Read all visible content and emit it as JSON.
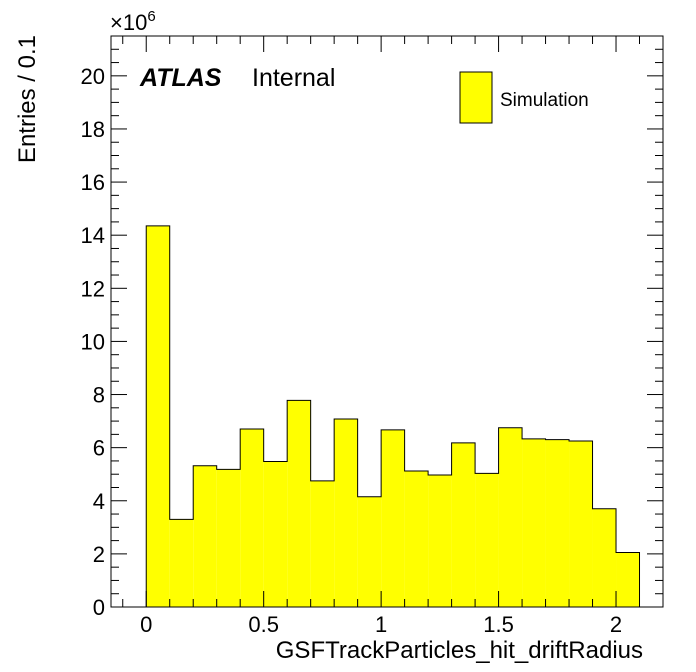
{
  "chart_data": {
    "type": "bar",
    "histogram": true,
    "x_bin_width": 0.1,
    "x_bin_start": 0.0,
    "values": [
      14.35,
      3.3,
      5.32,
      5.18,
      6.7,
      5.48,
      7.78,
      4.75,
      7.08,
      4.15,
      6.67,
      5.12,
      4.97,
      6.18,
      5.03,
      6.75,
      6.33,
      6.3,
      6.25,
      3.7,
      2.05
    ],
    "y_multiplier_label": "×10",
    "y_multiplier_exp": "6",
    "xlabel": "GSFTrackParticles_hit_driftRadius",
    "ylabel": "Entries / 0.1",
    "xlim": [
      -0.15,
      2.2
    ],
    "ylim": [
      0,
      21.5
    ],
    "x_ticks": [
      0,
      0.5,
      1,
      1.5,
      2
    ],
    "x_tick_labels": [
      "0",
      "0.5",
      "1",
      "1.5",
      "2"
    ],
    "y_ticks": [
      0,
      2,
      4,
      6,
      8,
      10,
      12,
      14,
      16,
      18,
      20
    ],
    "y_tick_labels": [
      "0",
      "2",
      "4",
      "6",
      "8",
      "10",
      "12",
      "14",
      "16",
      "18",
      "20"
    ],
    "grid": false,
    "legend_position": "top-right",
    "series": [
      {
        "name": "Simulation",
        "color": "#ffff00",
        "edge": "#000000"
      }
    ],
    "atlas_label": "ATLAS",
    "atlas_sublabel": "Internal"
  }
}
